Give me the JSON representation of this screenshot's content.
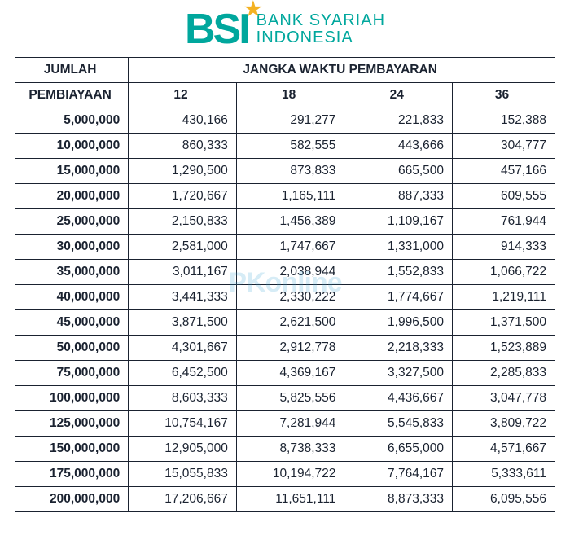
{
  "brand": {
    "mark": "BSI",
    "name_line1": "BANK SYARIAH",
    "name_line2": "INDONESIA",
    "text_color": "#00a79d",
    "star_color": "#f4b223"
  },
  "watermark": {
    "text": "PKonline",
    "color": "#3aa5d6"
  },
  "table": {
    "header_col1_line1": "JUMLAH",
    "header_col1_line2": "PEMBIAYAAN",
    "header_span": "JANGKA WAKTU PEMBAYARAN",
    "tenors": [
      "12",
      "18",
      "24",
      "36"
    ],
    "border_color": "#1a2230",
    "text_color": "#1a2230",
    "font_size": 15.5,
    "rows": [
      {
        "amount": "5,000,000",
        "payments": [
          "430,166",
          "291,277",
          "221,833",
          "152,388"
        ]
      },
      {
        "amount": "10,000,000",
        "payments": [
          "860,333",
          "582,555",
          "443,666",
          "304,777"
        ]
      },
      {
        "amount": "15,000,000",
        "payments": [
          "1,290,500",
          "873,833",
          "665,500",
          "457,166"
        ]
      },
      {
        "amount": "20,000,000",
        "payments": [
          "1,720,667",
          "1,165,111",
          "887,333",
          "609,555"
        ]
      },
      {
        "amount": "25,000,000",
        "payments": [
          "2,150,833",
          "1,456,389",
          "1,109,167",
          "761,944"
        ]
      },
      {
        "amount": "30,000,000",
        "payments": [
          "2,581,000",
          "1,747,667",
          "1,331,000",
          "914,333"
        ]
      },
      {
        "amount": "35,000,000",
        "payments": [
          "3,011,167",
          "2,038,944",
          "1,552,833",
          "1,066,722"
        ]
      },
      {
        "amount": "40,000,000",
        "payments": [
          "3,441,333",
          "2,330,222",
          "1,774,667",
          "1,219,111"
        ]
      },
      {
        "amount": "45,000,000",
        "payments": [
          "3,871,500",
          "2,621,500",
          "1,996,500",
          "1,371,500"
        ]
      },
      {
        "amount": "50,000,000",
        "payments": [
          "4,301,667",
          "2,912,778",
          "2,218,333",
          "1,523,889"
        ]
      },
      {
        "amount": "75,000,000",
        "payments": [
          "6,452,500",
          "4,369,167",
          "3,327,500",
          "2,285,833"
        ]
      },
      {
        "amount": "100,000,000",
        "payments": [
          "8,603,333",
          "5,825,556",
          "4,436,667",
          "3,047,778"
        ]
      },
      {
        "amount": "125,000,000",
        "payments": [
          "10,754,167",
          "7,281,944",
          "5,545,833",
          "3,809,722"
        ]
      },
      {
        "amount": "150,000,000",
        "payments": [
          "12,905,000",
          "8,738,333",
          "6,655,000",
          "4,571,667"
        ]
      },
      {
        "amount": "175,000,000",
        "payments": [
          "15,055,833",
          "10,194,722",
          "7,764,167",
          "5,333,611"
        ]
      },
      {
        "amount": "200,000,000",
        "payments": [
          "17,206,667",
          "11,651,111",
          "8,873,333",
          "6,095,556"
        ]
      }
    ]
  }
}
